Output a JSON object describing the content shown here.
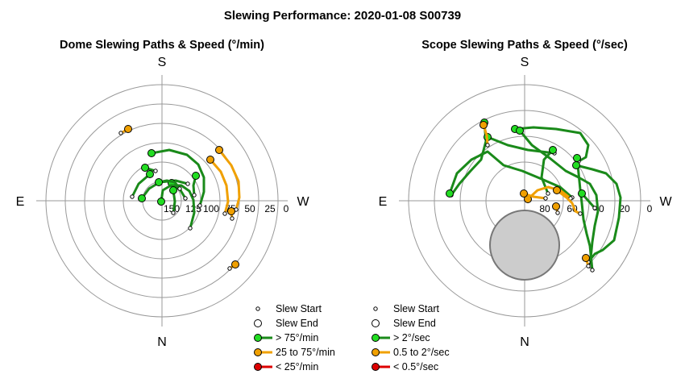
{
  "title": "Slewing Performance: 2020-01-08 S00739",
  "colors": {
    "fast": "#1a8a1a",
    "fast_marker": "#22dd22",
    "medium": "#f0a000",
    "medium_marker": "#f0a000",
    "slow": "#dd0000",
    "grid": "#999999",
    "zenith_fill": "#cccccc",
    "zenith_edge": "#777777"
  },
  "chart_data": [
    {
      "type": "polar-path",
      "title": "Dome Slewing Paths & Speed (°/min)",
      "compass": {
        "top": "S",
        "bottom": "N",
        "left": "E",
        "right": "W"
      },
      "radial_ticks": [
        "150",
        "125",
        "100",
        "75",
        "50",
        "25",
        "0"
      ],
      "legend": [
        {
          "symbol": "start",
          "label": "Slew Start"
        },
        {
          "symbol": "end",
          "label": "Slew End"
        },
        {
          "symbol": "fast",
          "label": "> 75°/min"
        },
        {
          "symbol": "medium",
          "label": "25 to 75°/min"
        },
        {
          "symbol": "slow",
          "label": "< 25°/min"
        }
      ],
      "slews": [
        {
          "speed": "fast",
          "points": [
            [
              188,
              190
            ],
            [
              210,
              186
            ],
            [
              232,
              192
            ],
            [
              246,
              204
            ],
            [
              253,
              220
            ],
            [
              253,
              238
            ],
            [
              248,
              255
            ]
          ]
        },
        {
          "speed": "fast",
          "points": [
            [
              180,
              208
            ],
            [
              193,
              212
            ]
          ]
        },
        {
          "speed": "fast",
          "points": [
            [
              186,
              216
            ],
            [
              172,
              228
            ],
            [
              164,
              244
            ]
          ]
        },
        {
          "speed": "fast",
          "points": [
            [
              176,
              246
            ],
            [
              185,
              234
            ],
            [
              198,
              226
            ],
            [
              218,
              224
            ],
            [
              233,
              228
            ]
          ]
        },
        {
          "speed": "fast",
          "points": [
            [
              213,
              227
            ],
            [
              224,
              236
            ],
            [
              230,
              246
            ]
          ]
        },
        {
          "speed": "fast",
          "points": [
            [
              197,
              226
            ],
            [
              207,
              224
            ],
            [
              217,
              226
            ],
            [
              223,
              234
            ]
          ]
        },
        {
          "speed": "fast",
          "points": [
            [
              200,
              250
            ],
            [
              202,
              236
            ],
            [
              212,
              230
            ],
            [
              225,
              230
            ],
            [
              235,
              237
            ],
            [
              240,
              248
            ],
            [
              241,
              264
            ],
            [
              236,
              283
            ]
          ]
        },
        {
          "speed": "fast",
          "points": [
            [
              215,
              236
            ],
            [
              217,
              250
            ],
            [
              215,
              264
            ]
          ]
        },
        {
          "speed": "fast",
          "points": [
            [
              243,
              218
            ],
            [
              240,
              230
            ],
            [
              241,
              242
            ]
          ]
        },
        {
          "speed": "medium",
          "points": [
            [
              272,
              186
            ],
            [
              287,
              205
            ],
            [
              296,
              225
            ],
            [
              297,
              245
            ],
            [
              293,
              260
            ]
          ]
        },
        {
          "speed": "medium",
          "points": [
            [
              261,
              198
            ],
            [
              274,
              213
            ],
            [
              281,
              230
            ],
            [
              283,
              250
            ],
            [
              279,
              265
            ]
          ]
        },
        {
          "speed": "medium",
          "points": [
            [
              159,
              160
            ],
            [
              150,
              165
            ]
          ]
        },
        {
          "speed": "medium",
          "points": [
            [
              292,
              328
            ],
            [
              285,
              333
            ]
          ]
        },
        {
          "speed": "medium",
          "points": [
            [
              287,
              262
            ],
            [
              288,
              271
            ]
          ]
        }
      ]
    },
    {
      "type": "polar-path",
      "title": "Scope Slewing Paths & Speed (°/sec)",
      "compass": {
        "top": "S",
        "bottom": "N",
        "left": "E",
        "right": "W"
      },
      "radial_ticks": [
        "80",
        "60",
        "40",
        "20",
        "0"
      ],
      "legend": [
        {
          "symbol": "start",
          "label": "Slew Start"
        },
        {
          "symbol": "end",
          "label": "Slew End"
        },
        {
          "symbol": "fast",
          "label": "> 2°/sec"
        },
        {
          "symbol": "medium",
          "label": "0.5 to 2°/sec"
        },
        {
          "symbol": "slow",
          "label": "< 0.5°/sec"
        }
      ],
      "slews": [
        {
          "speed": "fast",
          "points": [
            [
              601,
              152
            ],
            [
              603,
              175
            ],
            [
              597,
              198
            ],
            [
              583,
              213
            ],
            [
              570,
              228
            ],
            [
              560,
              242
            ]
          ]
        },
        {
          "speed": "fast",
          "points": [
            [
              639,
              160
            ],
            [
              662,
              158
            ],
            [
              690,
              160
            ],
            [
              720,
              165
            ],
            [
              730,
              180
            ],
            [
              727,
              195
            ],
            [
              718,
              200
            ]
          ]
        },
        {
          "speed": "fast",
          "points": [
            [
              605,
              170
            ],
            [
              630,
              180
            ],
            [
              655,
              186
            ],
            [
              688,
              190
            ]
          ]
        },
        {
          "speed": "fast",
          "points": [
            [
              645,
              162
            ],
            [
              660,
              180
            ],
            [
              682,
              196
            ],
            [
              702,
              212
            ],
            [
              718,
              220
            ],
            [
              732,
              228
            ],
            [
              740,
              242
            ],
            [
              742,
              262
            ],
            [
              738,
              280
            ],
            [
              735,
              300
            ],
            [
              732,
              330
            ]
          ]
        },
        {
          "speed": "fast",
          "points": [
            [
              558,
              240
            ],
            [
              567,
              215
            ],
            [
              585,
              198
            ],
            [
              605,
              188
            ],
            [
              625,
              205
            ],
            [
              648,
              212
            ],
            [
              672,
              222
            ],
            [
              695,
              232
            ],
            [
              710,
              245
            ]
          ]
        },
        {
          "speed": "fast",
          "points": [
            [
              686,
              186
            ],
            [
              675,
              198
            ],
            [
              672,
              220
            ],
            [
              680,
              240
            ]
          ]
        },
        {
          "speed": "fast",
          "points": [
            [
              716,
              196
            ],
            [
              718,
              215
            ],
            [
              720,
              235
            ],
            [
              722,
              252
            ],
            [
              724,
              272
            ],
            [
              728,
              290
            ],
            [
              732,
              305
            ],
            [
              735,
              335
            ]
          ]
        },
        {
          "speed": "fast",
          "points": [
            [
              715,
              205
            ],
            [
              735,
              210
            ],
            [
              752,
              215
            ],
            [
              765,
              228
            ],
            [
              770,
              245
            ],
            [
              768,
              270
            ],
            [
              762,
              298
            ],
            [
              748,
              310
            ],
            [
              738,
              315
            ],
            [
              730,
              325
            ]
          ]
        },
        {
          "speed": "fast",
          "points": [
            [
              722,
              240
            ],
            [
              738,
              258
            ]
          ]
        },
        {
          "speed": "medium",
          "points": [
            [
              600,
              155
            ],
            [
              604,
              168
            ],
            [
              605,
              180
            ]
          ]
        },
        {
          "speed": "medium",
          "points": [
            [
              655,
              247
            ],
            [
              667,
              236
            ],
            [
              680,
              232
            ],
            [
              695,
              236
            ],
            [
              708,
              246
            ]
          ]
        },
        {
          "speed": "medium",
          "points": [
            [
              650,
              240
            ],
            [
              662,
              244
            ],
            [
              677,
              246
            ]
          ]
        },
        {
          "speed": "medium",
          "points": [
            [
              691,
              236
            ],
            [
              703,
              245
            ],
            [
              710,
              252
            ],
            [
              714,
              262
            ],
            [
              720,
              265
            ]
          ]
        },
        {
          "speed": "medium",
          "points": [
            [
              690,
              256
            ],
            [
              692,
              264
            ]
          ]
        },
        {
          "speed": "medium",
          "points": [
            [
              727,
              320
            ],
            [
              730,
              330
            ]
          ]
        }
      ]
    }
  ]
}
